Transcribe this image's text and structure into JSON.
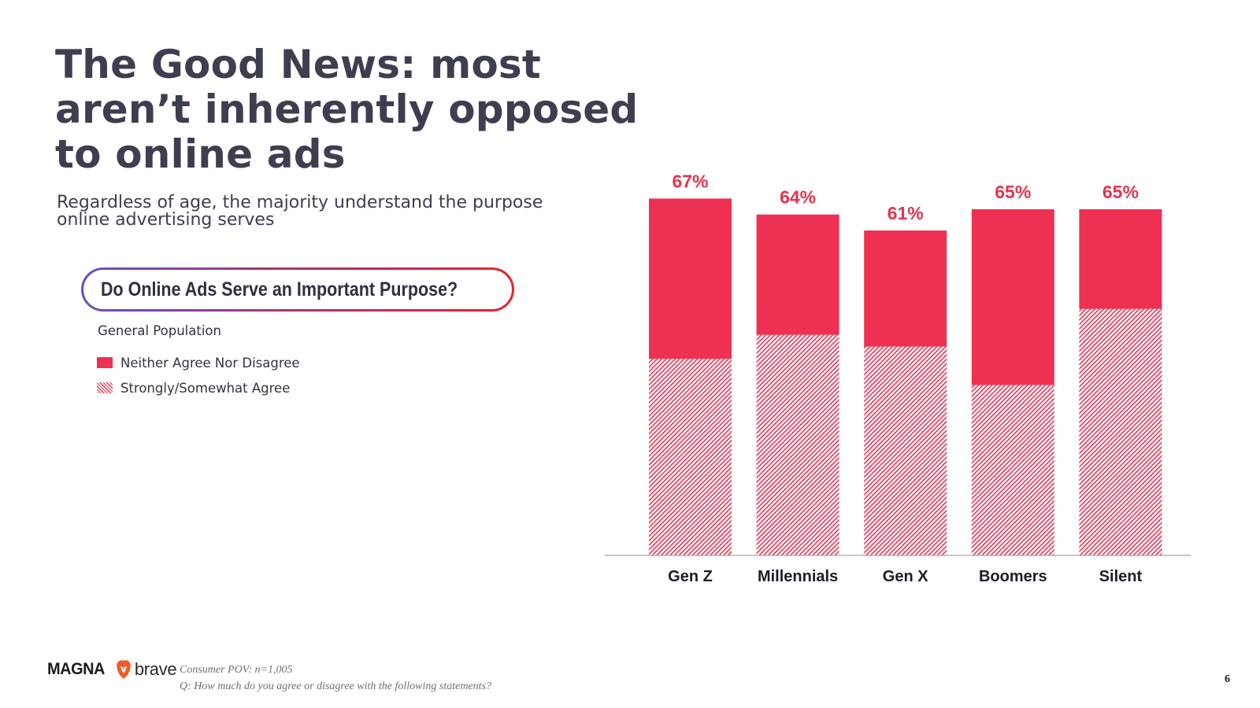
{
  "title_lines": [
    "The Good News: most",
    "aren’t inherently opposed",
    "to online ads"
  ],
  "subtitle_lines": [
    "Regardless of age, the majority understand the purpose",
    "online advertising serves"
  ],
  "question": "Do Online Ads Serve an Important Purpose?",
  "population": "General Population",
  "legend": [
    {
      "label": "Neither Agree Nor Disagree",
      "style": "solid"
    },
    {
      "label": "Strongly/Somewhat Agree",
      "style": "hatched"
    }
  ],
  "chart_data": {
    "type": "bar",
    "stacked": true,
    "categories": [
      "Gen Z",
      "Millennials",
      "Gen X",
      "Boomers",
      "Silent"
    ],
    "series": [
      {
        "name": "Strongly/Somewhat Agree",
        "style": "hatched",
        "values": [
          36.9,
          41.4,
          39.2,
          32.0,
          46.3
        ]
      },
      {
        "name": "Neither Agree Nor Disagree",
        "style": "solid",
        "values": [
          30.1,
          22.6,
          21.8,
          33.0,
          18.7
        ]
      }
    ],
    "total_labels": [
      "67%",
      "64%",
      "61%",
      "65%",
      "65%"
    ],
    "totals": [
      67,
      64,
      61,
      65,
      65
    ],
    "ylim": [
      0,
      100
    ],
    "title": "",
    "xlabel": "",
    "ylabel": "",
    "grid": false
  },
  "colors": {
    "bar": "#ee3152",
    "label": "#e8314f",
    "text": "#3d3e50"
  },
  "footer": {
    "logo_magna": "MAGNA",
    "logo_brave": "brave",
    "source_line1": "Consumer POV: n=1,005",
    "source_line2": "Q: How much do you agree or disagree with the following statements?",
    "page_number": "6"
  }
}
